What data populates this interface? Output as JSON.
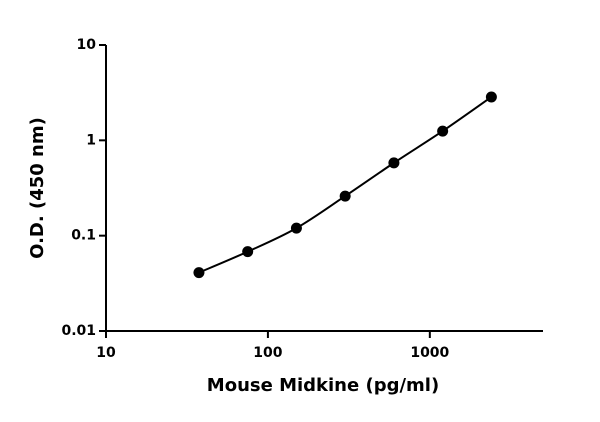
{
  "chart_data": {
    "type": "scatter",
    "x_label": "Mouse Midkine (pg/ml)",
    "y_label": "O.D. (450 nm)",
    "x": [
      37.5,
      75,
      150,
      300,
      600,
      1200,
      2400
    ],
    "values": [
      0.041,
      0.068,
      0.12,
      0.26,
      0.58,
      1.25,
      2.85
    ],
    "color": "#000000",
    "fit_line": true,
    "x_log": true,
    "y_log": true,
    "xlim": [
      10,
      5000
    ],
    "xticks": [
      10,
      100,
      1000
    ],
    "ylim": [
      0.01,
      10
    ],
    "yticks": [
      0.01,
      0.1,
      1,
      10
    ],
    "grid": false
  }
}
